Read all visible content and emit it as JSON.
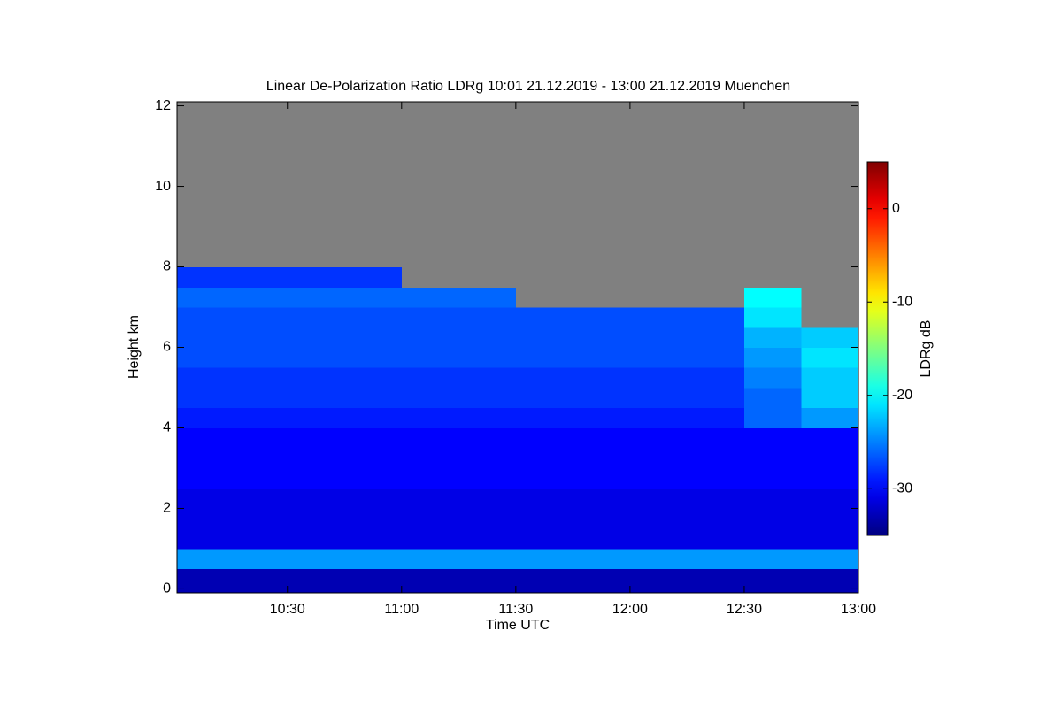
{
  "chart_data": {
    "type": "heatmap",
    "title": "Linear De-Polarization Ratio LDRg   10:01 21.12.2019 - 13:00 21.12.2019 Muenchen",
    "x_label": "Time UTC",
    "y_label": "Height km",
    "colorbar_label": "LDRg dB",
    "colormap": "jet",
    "null_color": "#808080",
    "xlim": [
      10.0167,
      13.0
    ],
    "xticks": [
      {
        "value": 10.5,
        "label": "10:30"
      },
      {
        "value": 11.0,
        "label": "11:00"
      },
      {
        "value": 11.5,
        "label": "11:30"
      },
      {
        "value": 12.0,
        "label": "12:00"
      },
      {
        "value": 12.5,
        "label": "12:30"
      },
      {
        "value": 13.0,
        "label": "13:00"
      }
    ],
    "ylim": [
      -0.1,
      12.1
    ],
    "yticks": [
      0,
      2,
      4,
      6,
      8,
      10,
      12
    ],
    "zlim": [
      -35,
      5
    ],
    "zticks": [
      0,
      -10,
      -20,
      -30
    ],
    "xbins": [
      10.0167,
      10.25,
      10.5,
      10.75,
      11.0,
      11.25,
      11.5,
      11.75,
      12.0,
      12.25,
      12.5,
      12.75,
      13.0
    ],
    "ybins": [
      0,
      0.5,
      1,
      1.5,
      2,
      2.5,
      3,
      3.5,
      4,
      4.5,
      5,
      5.5,
      6,
      6.5,
      7,
      7.5,
      8,
      8.5,
      9,
      9.5,
      10,
      10.5,
      11,
      11.5,
      12
    ],
    "z": [
      [
        -33,
        -33,
        -33,
        -33,
        -33,
        -33,
        -33,
        -33,
        -33,
        -33,
        -33,
        -33
      ],
      [
        -24,
        -24,
        -24,
        -24,
        -24,
        -24,
        -24,
        -24,
        -24,
        -24,
        -24,
        -24
      ],
      [
        -31,
        -31,
        -31,
        -31,
        -31,
        -31,
        -31,
        -31,
        -31,
        -31,
        -31,
        -31
      ],
      [
        -31,
        -31,
        -31,
        -31,
        -31,
        -31,
        -31,
        -31,
        -31,
        -31,
        -31,
        -31
      ],
      [
        -31,
        -31,
        -31,
        -31,
        -31,
        -31,
        -31,
        -31,
        -31,
        -31,
        -31,
        -31
      ],
      [
        -30,
        -30,
        -30,
        -30,
        -30,
        -30,
        -30,
        -30,
        -30,
        -30,
        -30,
        -30
      ],
      [
        -30,
        -30,
        -30,
        -30,
        -30,
        -30,
        -30,
        -30,
        -30,
        -30,
        -30,
        -30
      ],
      [
        -30,
        -30,
        -30,
        -30,
        -30,
        -30,
        -30,
        -30,
        -30,
        -30,
        -30,
        -30
      ],
      [
        -29,
        -29,
        -29,
        -29,
        -29,
        -29,
        -29,
        -29,
        -29,
        -29,
        -26,
        -24
      ],
      [
        -28,
        -28,
        -28,
        -28,
        -28,
        -28,
        -28,
        -28,
        -28,
        -28,
        -26,
        -22
      ],
      [
        -28,
        -28,
        -28,
        -28,
        -28,
        -28,
        -28,
        -28,
        -28,
        -28,
        -25,
        -22
      ],
      [
        -27,
        -27,
        -27,
        -27,
        -27,
        -27,
        -27,
        -27,
        -27,
        -27,
        -24,
        -21
      ],
      [
        -27,
        -27,
        -27,
        -27,
        -27,
        -27,
        -27,
        -27,
        -27,
        -27,
        -23,
        -22
      ],
      [
        -27,
        -27,
        -27,
        -27,
        -27,
        -27,
        -27,
        -27,
        -27,
        -27,
        -21,
        null
      ],
      [
        -26,
        -26,
        -26,
        -26,
        -26,
        -26,
        null,
        null,
        null,
        null,
        -20,
        null
      ],
      [
        -28,
        -28,
        -28,
        -28,
        null,
        null,
        null,
        null,
        null,
        null,
        null,
        null
      ],
      [
        null,
        null,
        null,
        null,
        null,
        null,
        null,
        null,
        null,
        null,
        null,
        null
      ],
      [
        null,
        null,
        null,
        null,
        null,
        null,
        null,
        null,
        null,
        null,
        null,
        null
      ],
      [
        null,
        null,
        null,
        null,
        null,
        null,
        null,
        null,
        null,
        null,
        null,
        null
      ],
      [
        null,
        null,
        null,
        null,
        null,
        null,
        null,
        null,
        null,
        null,
        null,
        null
      ],
      [
        null,
        null,
        null,
        null,
        null,
        null,
        null,
        null,
        null,
        null,
        null,
        null
      ],
      [
        null,
        null,
        null,
        null,
        null,
        null,
        null,
        null,
        null,
        null,
        null,
        null
      ],
      [
        null,
        null,
        null,
        null,
        null,
        null,
        null,
        null,
        null,
        null,
        null,
        null
      ],
      [
        null,
        null,
        null,
        null,
        null,
        null,
        null,
        null,
        null,
        null,
        null,
        null
      ]
    ]
  }
}
